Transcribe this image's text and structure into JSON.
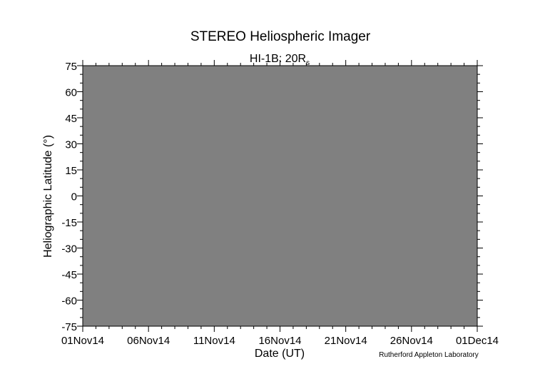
{
  "chart_data": {
    "type": "heatmap",
    "title": "STEREO Heliospheric Imager",
    "subtitle": "HI-1B: 20R",
    "subtitle_subscript": "s",
    "xlabel": "Date (UT)",
    "ylabel": "Heliographic Latitude (°)",
    "xlim": [
      "01Nov14",
      "01Dec14"
    ],
    "x_tick_labels": [
      "01Nov14",
      "06Nov14",
      "11Nov14",
      "16Nov14",
      "21Nov14",
      "26Nov14",
      "01Dec14"
    ],
    "x_minor_step_days": 1,
    "ylim": [
      -75,
      75
    ],
    "y_ticks": [
      75,
      60,
      45,
      30,
      15,
      0,
      -15,
      -30,
      -45,
      -60,
      -75
    ],
    "y_minor_step": 5,
    "grid": false,
    "fill_color": "#808080",
    "values": []
  },
  "credit": "Rutherford Appleton Laboratory"
}
